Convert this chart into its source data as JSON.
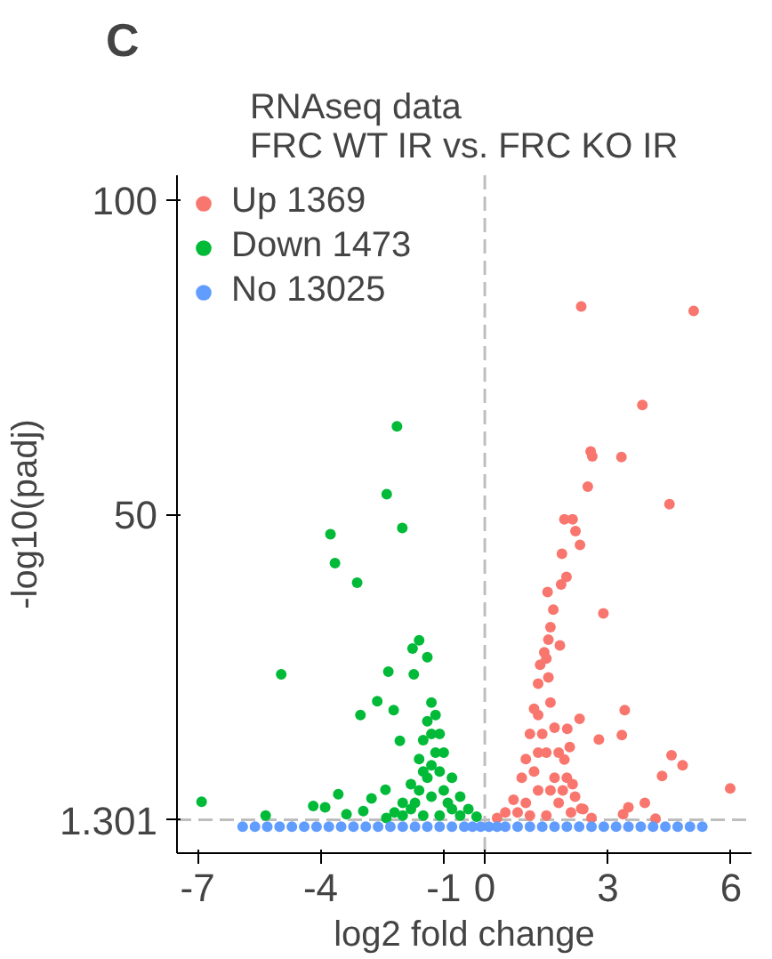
{
  "chart_data": {
    "type": "scatter",
    "title": "RNAseq data\nFRC WT IR vs. FRC KO IR",
    "xlabel": "log2 fold change",
    "ylabel": "-log10(padj)",
    "annotations": [
      "C"
    ],
    "xlim": [
      -7.5,
      6.5
    ],
    "ylim": [
      -4,
      104
    ],
    "xticks": [
      -7,
      -4,
      -1,
      0,
      3,
      6
    ],
    "yticks": [
      1.301,
      50,
      100
    ],
    "grid": false,
    "legend": "top left",
    "marker": "circle",
    "ref_lines": [
      {
        "axis": "y",
        "value": 1.301,
        "color": "#bebebe",
        "line_style": "dashed"
      },
      {
        "axis": "x",
        "value": 0,
        "color": "#bebebe",
        "line_style": "dashed"
      }
    ],
    "series": [
      {
        "name": "Up 1369",
        "color": "#f8766d",
        "x": [
          2.35,
          5.09,
          3.84,
          2.58,
          2.62,
          3.33,
          2.51,
          4.5,
          1.94,
          2.14,
          2.21,
          2.32,
          1.88,
          1.99,
          1.86,
          1.53,
          1.67,
          2.89,
          1.83,
          3.41,
          2.31,
          3.34,
          2.78,
          4.55,
          4.82,
          4.32,
          5.98,
          3.9,
          3.5,
          4.16,
          2.01,
          2.07,
          1.94,
          2.14,
          2.35,
          3.37,
          0.3,
          0.5,
          0.7,
          0.9,
          1.0,
          1.1,
          1.2,
          1.3,
          1.35,
          1.45,
          1.55,
          1.6,
          1.7,
          1.8,
          2.0,
          2.2,
          2.4,
          2.6,
          1.3,
          1.3,
          1.3,
          1.0,
          1.6,
          1.5,
          1.2,
          1.8,
          0.8,
          2.1,
          1.5,
          1.1,
          1.4,
          1.7,
          1.9,
          1.55,
          1.6,
          1.5
        ],
        "values": [
          83.1,
          82.4,
          67.4,
          60.0,
          59.2,
          59.1,
          54.4,
          51.6,
          49.2,
          49.2,
          47.3,
          45.1,
          43.7,
          40.0,
          38.8,
          37.6,
          34.8,
          34.2,
          29.1,
          18.8,
          17.4,
          14.8,
          14.1,
          11.6,
          10.0,
          8.3,
          6.3,
          4.0,
          3.3,
          1.5,
          15.8,
          12.9,
          10.9,
          7.0,
          3.1,
          2.2,
          1.6,
          2.5,
          4.5,
          8,
          11,
          15,
          19,
          23,
          26,
          28,
          24,
          20,
          16,
          12,
          8,
          5,
          3,
          1.6,
          18,
          12,
          6,
          4,
          6,
          12,
          9,
          4,
          2.5,
          2.5,
          2,
          2,
          15,
          8,
          6,
          30,
          32,
          27
        ]
      },
      {
        "name": "Down 1473",
        "color": "#00ba38",
        "x": [
          -2.14,
          -2.39,
          -2.01,
          -3.76,
          -3.65,
          -3.11,
          -4.96,
          -6.9,
          -5.34,
          -1.6,
          -1.76,
          -1.4,
          -2.35,
          -1.73,
          -2.62,
          -3.03,
          -2.22,
          -2.07,
          -3.57,
          -4.18,
          -3.89,
          -2.42,
          -2.76,
          -2.96,
          -3.37,
          -2.4,
          -2.2,
          -2.0,
          -1.8,
          -1.6,
          -1.5,
          -1.4,
          -1.3,
          -1.2,
          -1.1,
          -1.0,
          -0.8,
          -0.6,
          -0.4,
          -0.2,
          -1.3,
          -1.3,
          -1.3,
          -1.6,
          -1.0,
          -1.8,
          -0.8,
          -1.5,
          -1.1,
          -0.6,
          -2.0,
          -1.4,
          -1.2,
          -1.5,
          -1.1,
          -1.7,
          -0.9
        ],
        "values": [
          64.0,
          53.2,
          47.8,
          46.8,
          42.2,
          39.1,
          24.5,
          4.2,
          2,
          29.9,
          28.6,
          27.2,
          24.9,
          24.5,
          20.2,
          18.0,
          18.8,
          13.9,
          5.4,
          3.5,
          3.3,
          6.1,
          4.7,
          2.7,
          2.2,
          1.6,
          2.5,
          4,
          7,
          11,
          14,
          17,
          20,
          18,
          15,
          12,
          8,
          5,
          3,
          1.8,
          15,
          10,
          5,
          6,
          6,
          3,
          3,
          2,
          2,
          2,
          2,
          8,
          12,
          9,
          9,
          4,
          4
        ]
      },
      {
        "name": "No 13025",
        "color": "#619cff",
        "x": [
          -5.9,
          -5.6,
          -5.3,
          -5.0,
          -4.7,
          -4.4,
          -4.1,
          -3.8,
          -3.5,
          -3.2,
          -2.9,
          -2.6,
          -2.3,
          -2.0,
          -1.7,
          -1.4,
          -1.1,
          -0.8,
          -0.5,
          -0.3,
          -0.1,
          0.1,
          0.3,
          0.5,
          0.8,
          1.1,
          1.4,
          1.7,
          2.0,
          2.3,
          2.6,
          2.9,
          3.2,
          3.5,
          3.8,
          4.1,
          4.4,
          4.7,
          5.0,
          5.3
        ],
        "values": [
          0.2,
          0.2,
          0.2,
          0.2,
          0.2,
          0.2,
          0.2,
          0.2,
          0.2,
          0.2,
          0.2,
          0.2,
          0.2,
          0.2,
          0.2,
          0.2,
          0.2,
          0.2,
          0.2,
          0.2,
          0.2,
          0.2,
          0.2,
          0.2,
          0.2,
          0.2,
          0.2,
          0.2,
          0.2,
          0.2,
          0.2,
          0.2,
          0.2,
          0.2,
          0.2,
          0.2,
          0.2,
          0.2,
          0.2,
          0.2
        ]
      }
    ]
  }
}
